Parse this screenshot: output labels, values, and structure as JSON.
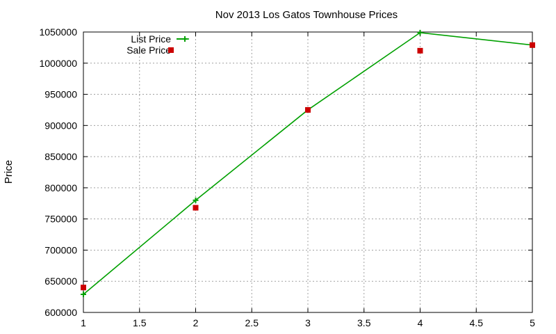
{
  "chart_data": {
    "type": "line",
    "title": "Nov 2013 Los Gatos Townhouse Prices",
    "xlabel": "",
    "ylabel": "Price",
    "xlim": [
      1,
      5
    ],
    "ylim": [
      600000,
      1050000
    ],
    "x_ticks": [
      "1",
      "1.5",
      "2",
      "2.5",
      "3",
      "3.5",
      "4",
      "4.5",
      "5"
    ],
    "y_ticks": [
      "600000",
      "650000",
      "700000",
      "750000",
      "800000",
      "850000",
      "900000",
      "950000",
      "1000000",
      "1050000"
    ],
    "grid": true,
    "legend_position": "top-left",
    "series": [
      {
        "name": "List Price",
        "style": "line+plus-markers",
        "color": "#00a000",
        "x": [
          1,
          2,
          3,
          4,
          5
        ],
        "values": [
          629000,
          780000,
          925000,
          1049000,
          1029000
        ]
      },
      {
        "name": "Sale Price",
        "style": "square-markers",
        "color": "#cc0000",
        "x": [
          1,
          2,
          3,
          4,
          5
        ],
        "values": [
          640000,
          768000,
          925000,
          1020000,
          1029000
        ]
      }
    ]
  }
}
